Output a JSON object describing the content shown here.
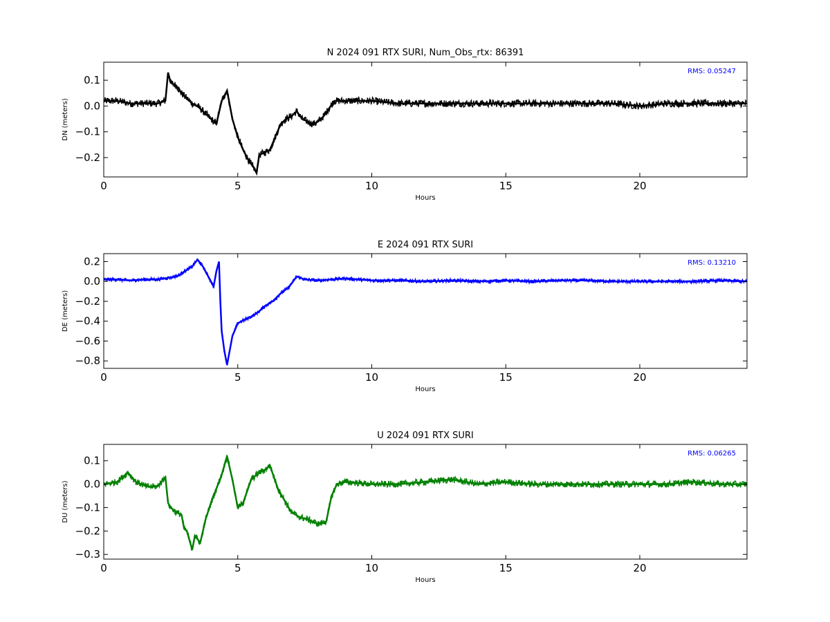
{
  "chart_data": [
    {
      "type": "line",
      "title": "N 2024 091 RTX  SURI, Num_Obs_rtx: 86391",
      "xlabel": "Hours",
      "ylabel": "DN (meters)",
      "xlim": [
        0,
        24
      ],
      "ylim": [
        -0.275,
        0.17
      ],
      "x_ticks": [
        0,
        5,
        10,
        15,
        20
      ],
      "y_ticks": [
        -0.2,
        -0.1,
        0.0,
        0.1
      ],
      "y_tick_labels": [
        "−0.2",
        "−0.1",
        "0.0",
        "0.1"
      ],
      "annotation": "RMS:  0.05247",
      "color": "#000000",
      "noise": 0.014,
      "grid": false,
      "series": [
        {
          "x": [
            0,
            0.5,
            1.0,
            1.5,
            2.0,
            2.3,
            2.4,
            2.5,
            2.7,
            2.9,
            3.1,
            3.3,
            3.5,
            3.8,
            4.0,
            4.2,
            4.4,
            4.6,
            4.8,
            5.0,
            5.2,
            5.4,
            5.6,
            5.7,
            5.8,
            6.0,
            6.2,
            6.4,
            6.6,
            6.8,
            7.0,
            7.2,
            7.4,
            7.6,
            7.8,
            8.0,
            8.2,
            8.4,
            8.6,
            9.0,
            10.0,
            11.0,
            12.0,
            13.0,
            14.0,
            15.0,
            16.0,
            17.0,
            18.0,
            19.0,
            20.0,
            21.0,
            22.0,
            23.0,
            24.0
          ],
          "y": [
            0.02,
            0.02,
            0.01,
            0.01,
            0.01,
            0.02,
            0.13,
            0.09,
            0.08,
            0.05,
            0.03,
            0.01,
            0.0,
            -0.03,
            -0.05,
            -0.07,
            0.02,
            0.06,
            -0.05,
            -0.12,
            -0.17,
            -0.21,
            -0.24,
            -0.26,
            -0.19,
            -0.18,
            -0.17,
            -0.12,
            -0.07,
            -0.05,
            -0.04,
            -0.02,
            -0.05,
            -0.06,
            -0.07,
            -0.06,
            -0.04,
            -0.01,
            0.02,
            0.02,
            0.02,
            0.01,
            0.01,
            0.01,
            0.01,
            0.01,
            0.01,
            0.01,
            0.01,
            0.01,
            0.0,
            0.01,
            0.01,
            0.01,
            0.01
          ]
        }
      ]
    },
    {
      "type": "line",
      "title": "E 2024 091 RTX  SURI",
      "xlabel": "Hours",
      "ylabel": "DE (meters)",
      "xlim": [
        0,
        24
      ],
      "ylim": [
        -0.875,
        0.28
      ],
      "x_ticks": [
        0,
        5,
        10,
        15,
        20
      ],
      "y_ticks": [
        -0.8,
        -0.6,
        -0.4,
        -0.2,
        0.0,
        0.2
      ],
      "y_tick_labels": [
        "−0.8",
        "−0.6",
        "−0.4",
        "−0.2",
        "0.0",
        "0.2"
      ],
      "annotation": "RMS:  0.13210",
      "color": "#0000ff",
      "noise": 0.018,
      "grid": false,
      "series": [
        {
          "x": [
            0,
            0.5,
            1.0,
            1.5,
            2.0,
            2.5,
            2.8,
            3.0,
            3.3,
            3.5,
            3.7,
            3.9,
            4.0,
            4.1,
            4.2,
            4.3,
            4.35,
            4.4,
            4.5,
            4.6,
            4.8,
            5.0,
            5.3,
            5.6,
            5.8,
            6.0,
            6.3,
            6.6,
            6.9,
            7.2,
            7.5,
            8.0,
            8.5,
            9.0,
            10.0,
            11.0,
            12.0,
            13.0,
            14.0,
            15.0,
            16.0,
            17.0,
            18.0,
            19.0,
            20.0,
            21.0,
            22.0,
            23.0,
            24.0
          ],
          "y": [
            0.02,
            0.02,
            0.01,
            0.02,
            0.02,
            0.04,
            0.06,
            0.1,
            0.15,
            0.22,
            0.15,
            0.05,
            0.0,
            -0.05,
            0.1,
            0.2,
            -0.2,
            -0.5,
            -0.7,
            -0.84,
            -0.55,
            -0.42,
            -0.38,
            -0.34,
            -0.3,
            -0.25,
            -0.2,
            -0.12,
            -0.06,
            0.05,
            0.02,
            0.01,
            0.02,
            0.03,
            0.01,
            0.01,
            0.0,
            0.01,
            0.0,
            0.01,
            0.0,
            0.01,
            0.01,
            0.0,
            0.0,
            0.0,
            0.0,
            0.01,
            0.0
          ]
        }
      ]
    },
    {
      "type": "line",
      "title": "U 2024 091 RTX  SURI",
      "xlabel": "Hours",
      "ylabel": "DU (meters)",
      "xlim": [
        0,
        24
      ],
      "ylim": [
        -0.32,
        0.17
      ],
      "x_ticks": [
        0,
        5,
        10,
        15,
        20
      ],
      "y_ticks": [
        -0.3,
        -0.2,
        -0.1,
        0.0,
        0.1
      ],
      "y_tick_labels": [
        "−0.3",
        "−0.2",
        "−0.1",
        "0.0",
        "0.1"
      ],
      "annotation": "RMS:  0.06265",
      "color": "#008000",
      "noise": 0.014,
      "grid": false,
      "series": [
        {
          "x": [
            0,
            0.5,
            0.9,
            1.2,
            1.6,
            2.0,
            2.3,
            2.4,
            2.5,
            2.7,
            2.9,
            3.0,
            3.1,
            3.3,
            3.4,
            3.6,
            3.8,
            4.0,
            4.2,
            4.4,
            4.6,
            4.8,
            5.0,
            5.2,
            5.5,
            5.8,
            6.0,
            6.2,
            6.5,
            7.0,
            7.3,
            7.6,
            8.0,
            8.3,
            8.5,
            8.7,
            9.0,
            10.0,
            11.0,
            12.0,
            13.0,
            14.0,
            15.0,
            16.0,
            17.0,
            18.0,
            19.0,
            20.0,
            21.0,
            22.0,
            23.0,
            24.0
          ],
          "y": [
            0.0,
            0.01,
            0.05,
            0.01,
            -0.01,
            -0.01,
            0.03,
            -0.08,
            -0.1,
            -0.12,
            -0.13,
            -0.19,
            -0.2,
            -0.28,
            -0.22,
            -0.25,
            -0.15,
            -0.08,
            -0.02,
            0.04,
            0.12,
            0.02,
            -0.1,
            -0.08,
            0.02,
            0.05,
            0.06,
            0.08,
            -0.02,
            -0.12,
            -0.14,
            -0.15,
            -0.17,
            -0.16,
            -0.05,
            0.0,
            0.01,
            0.0,
            0.0,
            0.01,
            0.02,
            0.0,
            0.01,
            0.0,
            0.0,
            0.0,
            0.0,
            0.0,
            0.0,
            0.01,
            0.0,
            0.0
          ]
        }
      ]
    }
  ]
}
